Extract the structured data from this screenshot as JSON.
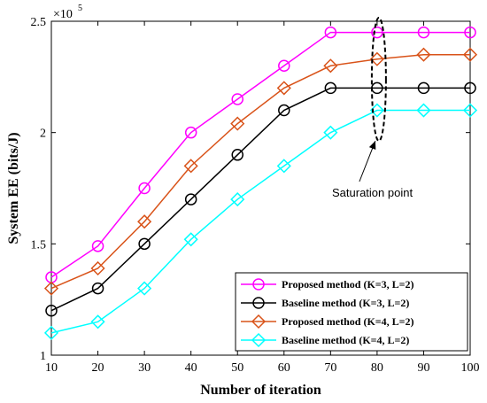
{
  "chart_data": {
    "type": "line",
    "xlabel": "Number of iteration",
    "ylabel": "System EE (bits/J)",
    "y_multiplier_label": "×10",
    "y_multiplier_exp": "5",
    "xlim": [
      10,
      100
    ],
    "ylim": [
      1,
      2.5
    ],
    "xticks": [
      10,
      20,
      30,
      40,
      50,
      60,
      70,
      80,
      90,
      100
    ],
    "yticks": [
      1,
      1.5,
      2,
      2.5
    ],
    "ytick_labels": [
      "1",
      "1.5",
      "2",
      "2.5"
    ],
    "grid": false,
    "legend_position": "bottom-right",
    "x": [
      10,
      20,
      30,
      40,
      50,
      60,
      70,
      80,
      90,
      100
    ],
    "series": [
      {
        "name": "Proposed method (K=3, L=2)",
        "color": "#ff00ff",
        "marker": "circle",
        "values": [
          1.35,
          1.49,
          1.75,
          2.0,
          2.15,
          2.3,
          2.45,
          2.45,
          2.45,
          2.45
        ]
      },
      {
        "name": "Baseline method (K=3, L=2)",
        "color": "#000000",
        "marker": "circle",
        "values": [
          1.2,
          1.3,
          1.5,
          1.7,
          1.9,
          2.1,
          2.2,
          2.2,
          2.2,
          2.2
        ]
      },
      {
        "name": "Proposed method (K=4, L=2)",
        "color": "#d95319",
        "marker": "diamond",
        "values": [
          1.3,
          1.39,
          1.6,
          1.85,
          2.04,
          2.2,
          2.3,
          2.33,
          2.35,
          2.35
        ]
      },
      {
        "name": "Baseline method (K=4, L=2)",
        "color": "#00ffff",
        "marker": "diamond",
        "values": [
          1.1,
          1.15,
          1.3,
          1.52,
          1.7,
          1.85,
          2.0,
          2.1,
          2.1,
          2.1
        ]
      }
    ],
    "annotation": {
      "text": "Saturation point",
      "x": 80,
      "y_low": 2.01,
      "y_high": 2.5
    }
  }
}
